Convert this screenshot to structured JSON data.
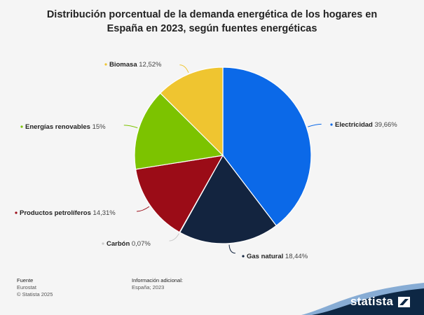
{
  "chart_data": {
    "type": "pie",
    "title": "Distribución porcentual de la demanda energética de los hogares en España en 2023, según fuentes energéticas",
    "slices": [
      {
        "label": "Electricidad",
        "value": 39.66,
        "value_label": "39,66%",
        "color": "#0b69e8"
      },
      {
        "label": "Gas natural",
        "value": 18.44,
        "value_label": "18,44%",
        "color": "#13243f"
      },
      {
        "label": "Carbón",
        "value": 0.07,
        "value_label": "0,07%",
        "color": "#c9c9c9"
      },
      {
        "label": "Productos petrolíferos",
        "value": 14.31,
        "value_label": "14,31%",
        "color": "#9b0c17"
      },
      {
        "label": "Energías renovables",
        "value": 15,
        "value_label": "15%",
        "color": "#7cc300"
      },
      {
        "label": "Biomasa",
        "value": 12.52,
        "value_label": "12,52%",
        "color": "#efc530"
      }
    ],
    "legend": "none"
  },
  "footer": {
    "source_heading": "Fuente",
    "source_lines": [
      "Eurostat",
      "© Statista 2025"
    ],
    "info_heading": "Información adicional:",
    "info_lines": [
      "España; 2023"
    ]
  },
  "brand": {
    "name": "statista"
  }
}
